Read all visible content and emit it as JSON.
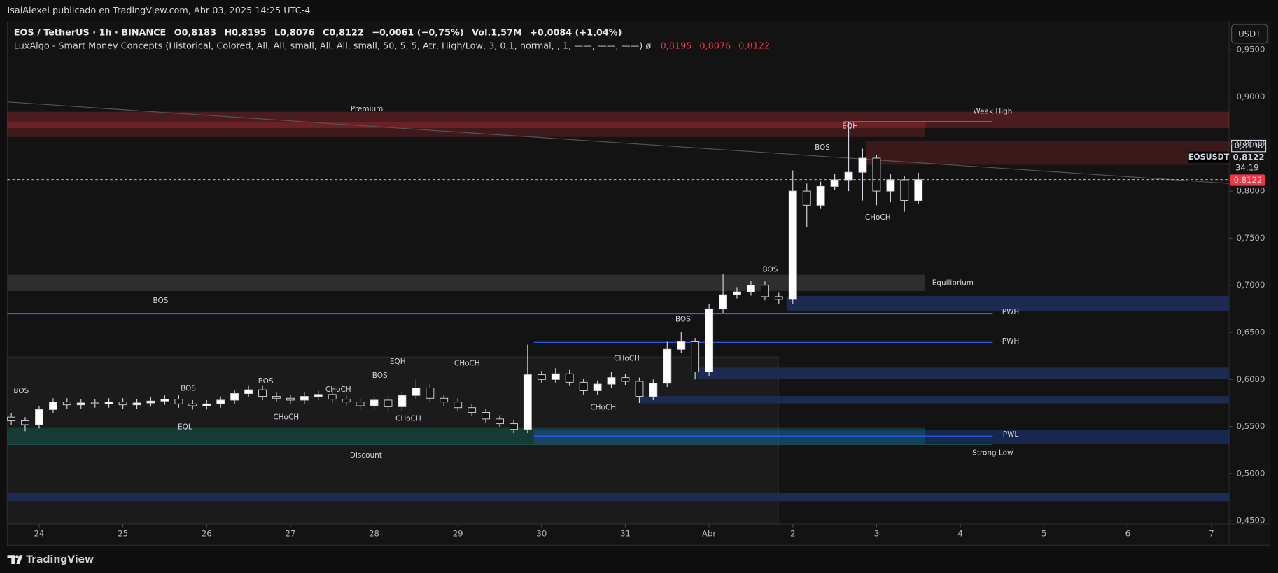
{
  "header": {
    "title": "IsaiAlexei publicado en TradingView.com, Abr 03, 2025 14:25 UTC-4"
  },
  "legend": {
    "symbol": "EOS / TetherUS · 1h · BINANCE",
    "values": [
      "O0,8183",
      "H0,8195",
      "L0,8076",
      "C0,8122",
      "−0,0061 (−0,75%)",
      "Vol.1,57M",
      "+0,0084 (+1,04%)"
    ]
  },
  "indicator": {
    "name": "LuxAlgo - Smart Money Concepts (Historical, Colored, All, All, small, All, All, small, 50, 5, 5, Atr, High/Low, 3, 0,1, normal, , 1, ——, ——, ——)  ø",
    "values": [
      "0,8195",
      "0,8076",
      "0,8122"
    ]
  },
  "currency": "USDT",
  "price_tags": {
    "high": "0,8198",
    "symbol": "EOSUSDT",
    "last": "0,8122",
    "countdown": "34:19",
    "last_badge": "0,8122"
  },
  "footer": {
    "brand": "TradingView"
  },
  "annotations": [
    "Premium",
    "Weak High",
    "EQH",
    "BOS",
    "CHoCH",
    "BOS",
    "Equilibrium",
    "BOS",
    "PWH",
    "PWH",
    "BOS",
    "CHoCH",
    "CHoCH",
    "EQH",
    "BOS",
    "CHoCH",
    "BOS",
    "BOS",
    "BOS",
    "CHoCH",
    "CHoCH",
    "CHoCH",
    "EQL",
    "PWL",
    "Discount",
    "Strong Low"
  ],
  "chart_data": {
    "type": "candlestick",
    "x": [
      -0.333,
      -0.167,
      0,
      0.167,
      0.333,
      0.5,
      0.667,
      0.833,
      1,
      1.167,
      1.333,
      1.5,
      1.667,
      1.833,
      2,
      2.167,
      2.333,
      2.5,
      2.667,
      2.833,
      3,
      3.167,
      3.333,
      3.5,
      3.667,
      3.833,
      4,
      4.167,
      4.333,
      4.5,
      4.667,
      4.833,
      5,
      5.167,
      5.333,
      5.5,
      5.667,
      5.833,
      6,
      6.167,
      6.333,
      6.5,
      6.667,
      6.833,
      7,
      7.167,
      7.333,
      7.5,
      7.667,
      7.833,
      8,
      8.167,
      8.333,
      8.5,
      8.667,
      8.833,
      9,
      9.167,
      9.333,
      9.5,
      9.667,
      9.833,
      10,
      10.167,
      10.333,
      10.5
    ],
    "open": [
      0.56,
      0.556,
      0.552,
      0.568,
      0.576,
      0.573,
      0.575,
      0.574,
      0.576,
      0.573,
      0.575,
      0.577,
      0.579,
      0.574,
      0.572,
      0.574,
      0.578,
      0.585,
      0.589,
      0.582,
      0.58,
      0.578,
      0.582,
      0.584,
      0.579,
      0.576,
      0.572,
      0.578,
      0.571,
      0.583,
      0.591,
      0.58,
      0.576,
      0.57,
      0.565,
      0.558,
      0.553,
      0.547,
      0.605,
      0.6,
      0.606,
      0.597,
      0.588,
      0.595,
      0.602,
      0.598,
      0.582,
      0.596,
      0.632,
      0.64,
      0.608,
      0.675,
      0.69,
      0.693,
      0.7,
      0.688,
      0.685,
      0.8,
      0.785,
      0.805,
      0.812,
      0.82,
      0.835,
      0.8,
      0.812,
      0.79
    ],
    "high": [
      0.564,
      0.56,
      0.572,
      0.58,
      0.58,
      0.579,
      0.579,
      0.58,
      0.58,
      0.579,
      0.581,
      0.583,
      0.583,
      0.578,
      0.578,
      0.582,
      0.589,
      0.593,
      0.593,
      0.586,
      0.584,
      0.586,
      0.588,
      0.588,
      0.583,
      0.58,
      0.582,
      0.582,
      0.587,
      0.6,
      0.595,
      0.584,
      0.58,
      0.574,
      0.569,
      0.562,
      0.557,
      0.637,
      0.609,
      0.612,
      0.61,
      0.601,
      0.599,
      0.608,
      0.606,
      0.602,
      0.6,
      0.64,
      0.65,
      0.644,
      0.68,
      0.712,
      0.698,
      0.705,
      0.704,
      0.692,
      0.822,
      0.808,
      0.81,
      0.818,
      0.873,
      0.845,
      0.838,
      0.818,
      0.816,
      0.8195
    ],
    "low": [
      0.552,
      0.545,
      0.548,
      0.564,
      0.569,
      0.569,
      0.57,
      0.57,
      0.569,
      0.569,
      0.571,
      0.573,
      0.57,
      0.568,
      0.568,
      0.57,
      0.574,
      0.581,
      0.578,
      0.576,
      0.574,
      0.574,
      0.578,
      0.575,
      0.572,
      0.568,
      0.568,
      0.566,
      0.567,
      0.579,
      0.576,
      0.572,
      0.566,
      0.561,
      0.554,
      0.549,
      0.543,
      0.543,
      0.596,
      0.596,
      0.593,
      0.584,
      0.584,
      0.591,
      0.594,
      0.575,
      0.578,
      0.592,
      0.628,
      0.6,
      0.604,
      0.67,
      0.686,
      0.689,
      0.684,
      0.68,
      0.68,
      0.762,
      0.781,
      0.801,
      0.8,
      0.79,
      0.785,
      0.788,
      0.778,
      0.786
    ],
    "close": [
      0.556,
      0.552,
      0.568,
      0.576,
      0.573,
      0.575,
      0.574,
      0.576,
      0.573,
      0.575,
      0.577,
      0.579,
      0.574,
      0.572,
      0.574,
      0.578,
      0.585,
      0.589,
      0.582,
      0.58,
      0.578,
      0.582,
      0.584,
      0.579,
      0.576,
      0.572,
      0.578,
      0.571,
      0.583,
      0.591,
      0.58,
      0.576,
      0.57,
      0.565,
      0.558,
      0.553,
      0.547,
      0.605,
      0.6,
      0.606,
      0.597,
      0.588,
      0.595,
      0.602,
      0.598,
      0.582,
      0.596,
      0.632,
      0.64,
      0.608,
      0.675,
      0.69,
      0.693,
      0.7,
      0.688,
      0.685,
      0.8,
      0.785,
      0.805,
      0.812,
      0.82,
      0.835,
      0.8,
      0.812,
      0.79,
      0.8122
    ],
    "up_color": "#ffffff",
    "down_color": "#131313",
    "xlim": [
      -0.38,
      14.21
    ],
    "xticks": [
      {
        "value": 0,
        "label": "24"
      },
      {
        "value": 1,
        "label": "25"
      },
      {
        "value": 2,
        "label": "26"
      },
      {
        "value": 3,
        "label": "27"
      },
      {
        "value": 4,
        "label": "28"
      },
      {
        "value": 5,
        "label": "29"
      },
      {
        "value": 6,
        "label": "30"
      },
      {
        "value": 7,
        "label": "31"
      },
      {
        "value": 8,
        "label": "Abr"
      },
      {
        "value": 9,
        "label": "2"
      },
      {
        "value": 10,
        "label": "3"
      },
      {
        "value": 11,
        "label": "4"
      },
      {
        "value": 12,
        "label": "5"
      },
      {
        "value": 13,
        "label": "6"
      },
      {
        "value": 14,
        "label": "7"
      }
    ],
    "ylim": [
      0.4465,
      0.9794
    ],
    "yticks": [
      {
        "value": 0.95,
        "label": "0,9500"
      },
      {
        "value": 0.9,
        "label": "0,9000"
      },
      {
        "value": 0.85,
        "label": "0,8500"
      },
      {
        "value": 0.8,
        "label": "0,8000"
      },
      {
        "value": 0.75,
        "label": "0,7500"
      },
      {
        "value": 0.7,
        "label": "0,7000"
      },
      {
        "value": 0.65,
        "label": "0,6500"
      },
      {
        "value": 0.6,
        "label": "0,6000"
      },
      {
        "value": 0.55,
        "label": "0,5500"
      },
      {
        "value": 0.5,
        "label": "0,5000"
      },
      {
        "value": 0.45,
        "label": "0,4500"
      }
    ],
    "grid": false
  }
}
